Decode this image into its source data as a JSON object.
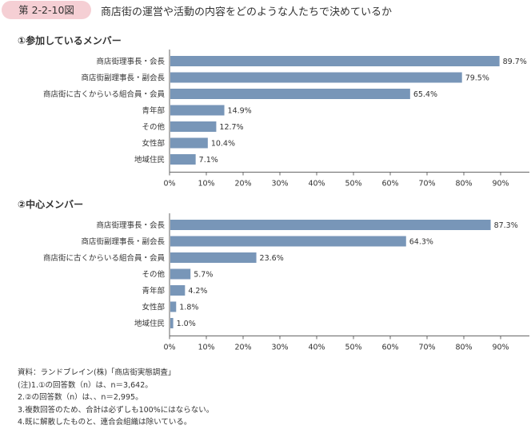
{
  "figure": {
    "number": "第 2-2-10図",
    "title": "商店街の運営や活動の内容をどのような人たちで決めているか"
  },
  "chart_data": [
    {
      "type": "bar",
      "orientation": "horizontal",
      "title": "①参加しているメンバー",
      "categories": [
        "商店街理事長・会長",
        "商店街副理事長・副会長",
        "商店街に古くからいる組合員・会員",
        "青年部",
        "その他",
        "女性部",
        "地域住民"
      ],
      "values": [
        89.7,
        79.5,
        65.4,
        14.9,
        12.7,
        10.4,
        7.1
      ],
      "value_labels": [
        "89.7%",
        "79.5%",
        "65.4%",
        "14.9%",
        "12.7%",
        "10.4%",
        "7.1%"
      ],
      "xlim": [
        0,
        90
      ],
      "ticks": [
        "0%",
        "10%",
        "20%",
        "30%",
        "40%",
        "50%",
        "60%",
        "70%",
        "80%",
        "90%"
      ],
      "color": "#7896b8"
    },
    {
      "type": "bar",
      "orientation": "horizontal",
      "title": "②中心メンバー",
      "categories": [
        "商店街理事長・会長",
        "商店街副理事長・副会長",
        "商店街に古くからいる組合員・会員",
        "その他",
        "青年部",
        "女性部",
        "地域住民"
      ],
      "values": [
        87.3,
        64.3,
        23.6,
        5.7,
        4.2,
        1.8,
        1.0
      ],
      "value_labels": [
        "87.3%",
        "64.3%",
        "23.6%",
        "5.7%",
        "4.2%",
        "1.8%",
        "1.0%"
      ],
      "xlim": [
        0,
        90
      ],
      "ticks": [
        "0%",
        "10%",
        "20%",
        "30%",
        "40%",
        "50%",
        "60%",
        "70%",
        "80%",
        "90%"
      ],
      "color": "#7896b8"
    }
  ],
  "notes": [
    "資料：ランドブレイン(株)「商店街実態調査」",
    "(注)1.①の回答数（n）は、n＝3,642。",
    "2.②の回答数（n）は、、n＝2,995。",
    "3.複数回答のため、合計は必ずしも100%にはならない。",
    "4.既に解散したものと、連合会組織は除いている。"
  ]
}
